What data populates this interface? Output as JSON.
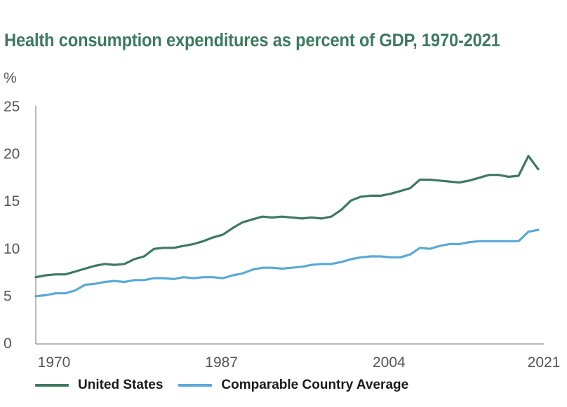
{
  "chart_data": {
    "type": "line",
    "title": "Health consumption expenditures as percent of GDP, 1970-2021",
    "ylabel": "%",
    "xlabel": "",
    "ylim": [
      0,
      25
    ],
    "xlim": [
      1970,
      2021
    ],
    "y_ticks": [
      0,
      5,
      10,
      15,
      20,
      25
    ],
    "x_ticks": [
      1970,
      1987,
      2004,
      2021
    ],
    "x_tick_labels": [
      "1970",
      "1987",
      "2004",
      "2021"
    ],
    "grid": false,
    "legend_position": "bottom",
    "x": [
      1970,
      1971,
      1972,
      1973,
      1974,
      1975,
      1976,
      1977,
      1978,
      1979,
      1980,
      1981,
      1982,
      1983,
      1984,
      1985,
      1986,
      1987,
      1988,
      1989,
      1990,
      1991,
      1992,
      1993,
      1994,
      1995,
      1996,
      1997,
      1998,
      1999,
      2000,
      2001,
      2002,
      2003,
      2004,
      2005,
      2006,
      2007,
      2008,
      2009,
      2010,
      2011,
      2012,
      2013,
      2014,
      2015,
      2016,
      2017,
      2018,
      2019,
      2020,
      2021
    ],
    "series": [
      {
        "name": "United States",
        "color": "#3d7a5f",
        "values": [
          6.9,
          7.1,
          7.2,
          7.2,
          7.5,
          7.8,
          8.1,
          8.3,
          8.2,
          8.3,
          8.8,
          9.1,
          9.9,
          10.0,
          10.0,
          10.2,
          10.4,
          10.7,
          11.1,
          11.4,
          12.1,
          12.7,
          13.0,
          13.3,
          13.2,
          13.3,
          13.2,
          13.1,
          13.2,
          13.1,
          13.3,
          14.0,
          15.0,
          15.4,
          15.5,
          15.5,
          15.7,
          16.0,
          16.3,
          17.2,
          17.2,
          17.1,
          17.0,
          16.9,
          17.1,
          17.4,
          17.7,
          17.7,
          17.5,
          17.6,
          19.7,
          18.3
        ]
      },
      {
        "name": "Comparable Country Average",
        "color": "#5aa9d6",
        "values": [
          4.9,
          5.0,
          5.2,
          5.2,
          5.5,
          6.1,
          6.2,
          6.4,
          6.5,
          6.4,
          6.6,
          6.6,
          6.8,
          6.8,
          6.7,
          6.9,
          6.8,
          6.9,
          6.9,
          6.8,
          7.1,
          7.3,
          7.7,
          7.9,
          7.9,
          7.8,
          7.9,
          8.0,
          8.2,
          8.3,
          8.3,
          8.5,
          8.8,
          9.0,
          9.1,
          9.1,
          9.0,
          9.0,
          9.3,
          10.0,
          9.9,
          10.2,
          10.4,
          10.4,
          10.6,
          10.7,
          10.7,
          10.7,
          10.7,
          10.7,
          11.7,
          11.9
        ]
      }
    ]
  }
}
